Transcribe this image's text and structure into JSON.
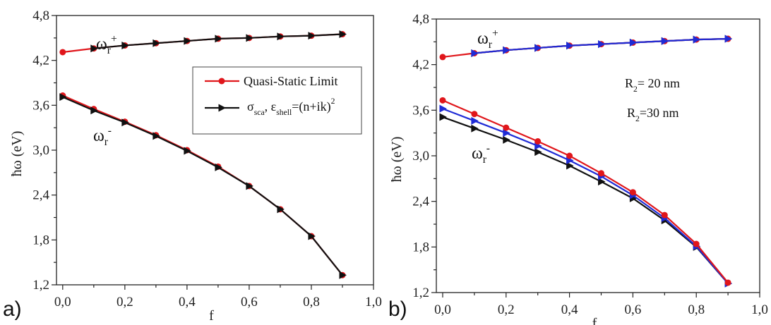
{
  "chart_data": [
    {
      "type": "line",
      "panel_label": "a)",
      "xlabel": "f",
      "ylabel": "ħω (eV)",
      "xlim": [
        -0.02,
        1.0
      ],
      "ylim": [
        1.2,
        4.8
      ],
      "xticks": [
        "0,0",
        "0,2",
        "0,4",
        "0,6",
        "0,8",
        "1,0"
      ],
      "yticks": [
        "1,2",
        "1,8",
        "2,4",
        "3,0",
        "3,6",
        "4,2",
        "4,8"
      ],
      "grid": false,
      "legend_position": "upper-right",
      "legend": [
        {
          "label": "Quasi-Static Limit",
          "color": "#e0161b",
          "marker": "circle"
        },
        {
          "label_parts": [
            "σ",
            "sca",
            ", ε",
            "shell",
            "=(n+ik)",
            "2"
          ],
          "color": "#111111",
          "marker": "triangle-right"
        }
      ],
      "annotations": [
        {
          "base": "ω",
          "sub": "r",
          "sup": "+"
        },
        {
          "base": "ω",
          "sub": "r",
          "sup": "-"
        }
      ],
      "x": [
        0,
        0.1,
        0.2,
        0.3,
        0.4,
        0.5,
        0.6,
        0.7,
        0.8,
        0.9
      ],
      "series": [
        {
          "name": "Quasi-Static Limit",
          "branch": "ω_r+",
          "color": "#e0161b",
          "marker": "circle",
          "values": [
            4.31,
            4.36,
            4.4,
            4.43,
            4.46,
            4.49,
            4.5,
            4.52,
            4.53,
            4.55
          ]
        },
        {
          "name": "Quasi-Static Limit",
          "branch": "ω_r-",
          "color": "#e0161b",
          "marker": "circle",
          "values": [
            3.73,
            3.55,
            3.38,
            3.2,
            3.0,
            2.78,
            2.52,
            2.21,
            1.85,
            1.33
          ]
        },
        {
          "name": "σsca, εshell=(n+ik)2",
          "branch": "ω_r+",
          "color": "#111111",
          "marker": "triangle-right",
          "values": [
            null,
            4.36,
            4.4,
            4.43,
            4.46,
            4.49,
            4.5,
            4.52,
            4.53,
            4.55
          ]
        },
        {
          "name": "σsca, εshell=(n+ik)2",
          "branch": "ω_r-",
          "color": "#111111",
          "marker": "triangle-right",
          "values": [
            3.71,
            3.53,
            3.37,
            3.19,
            2.99,
            2.77,
            2.52,
            2.21,
            1.85,
            1.33
          ]
        }
      ]
    },
    {
      "type": "line",
      "panel_label": "b)",
      "xlabel": "f",
      "ylabel": "ħω (eV)",
      "xlim": [
        -0.02,
        1.0
      ],
      "ylim": [
        1.2,
        4.8
      ],
      "xticks": [
        "0,0",
        "0,2",
        "0,4",
        "0,6",
        "0,8",
        "1,0"
      ],
      "yticks": [
        "1,2",
        "1,8",
        "2,4",
        "3,0",
        "3,6",
        "4,2",
        "4,8"
      ],
      "grid": false,
      "annotations": [
        {
          "base": "ω",
          "sub": "r",
          "sup": "+"
        },
        {
          "base": "ω",
          "sub": "r",
          "sup": "-"
        },
        {
          "base": "R",
          "sub": "2",
          "rest": "= 20 nm",
          "color": "#2b2bd0"
        },
        {
          "base": "R",
          "sub": "2",
          "rest": "=30 nm",
          "color": "#111111"
        }
      ],
      "x": [
        0,
        0.1,
        0.2,
        0.3,
        0.4,
        0.5,
        0.6,
        0.7,
        0.8,
        0.9
      ],
      "series": [
        {
          "branch": "ω_r+",
          "color": "#111111",
          "marker": "triangle-right",
          "values": [
            null,
            4.35,
            4.39,
            4.42,
            4.45,
            4.47,
            4.49,
            4.51,
            4.53,
            4.54
          ]
        },
        {
          "branch": "ω_r+",
          "color": "#e0161b",
          "marker": "circle",
          "values": [
            4.3,
            4.35,
            4.39,
            4.42,
            4.45,
            4.47,
            4.49,
            4.51,
            4.53,
            4.54
          ]
        },
        {
          "branch": "ω_r+",
          "color": "#1f2bd6",
          "marker": "triangle-right",
          "values": [
            null,
            4.35,
            4.39,
            4.42,
            4.45,
            4.47,
            4.49,
            4.51,
            4.53,
            4.54
          ]
        },
        {
          "branch": "ω_r-",
          "color": "#111111",
          "marker": "triangle-right",
          "values": [
            3.51,
            3.36,
            3.21,
            3.05,
            2.87,
            2.66,
            2.44,
            2.15,
            1.8,
            1.32
          ]
        },
        {
          "branch": "ω_r-",
          "color": "#1f2bd6",
          "marker": "triangle-right",
          "values": [
            3.62,
            3.46,
            3.3,
            3.13,
            2.94,
            2.73,
            2.48,
            2.18,
            1.81,
            1.32
          ]
        },
        {
          "branch": "ω_r-",
          "color": "#e0161b",
          "marker": "circle",
          "values": [
            3.73,
            3.55,
            3.37,
            3.19,
            3.0,
            2.77,
            2.52,
            2.22,
            1.84,
            1.33
          ]
        }
      ]
    }
  ]
}
